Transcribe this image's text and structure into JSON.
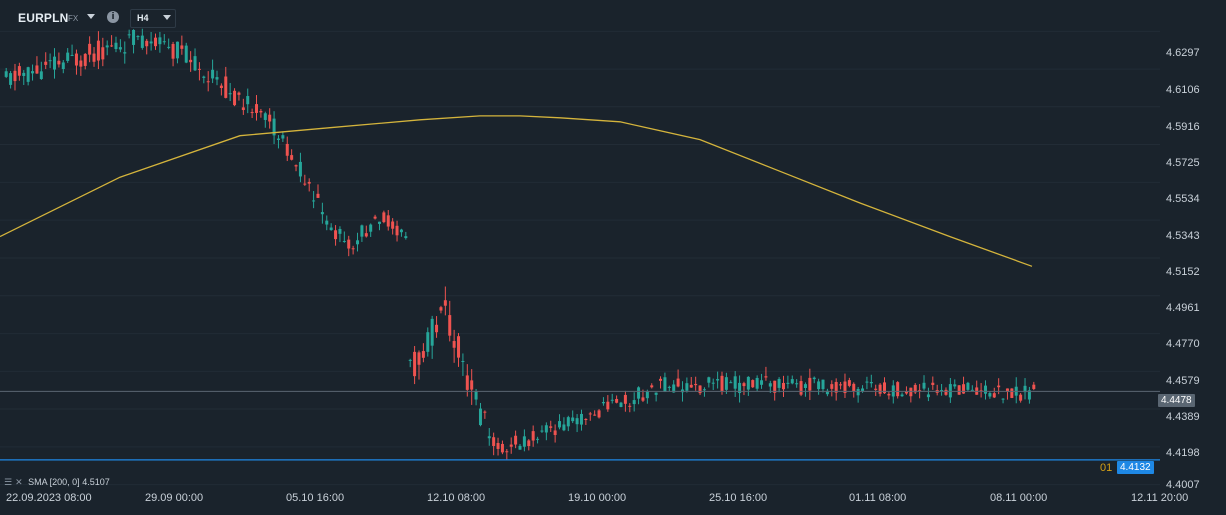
{
  "toolbar": {
    "symbol": "EURPLN",
    "symbol_type": "FX",
    "info_icon": "i",
    "timeframe": "H4"
  },
  "chart_data": {
    "type": "candlestick",
    "price_axis": [
      "4.6297",
      "4.6106",
      "4.5916",
      "4.5725",
      "4.5534",
      "4.5343",
      "4.5152",
      "4.4961",
      "4.4770",
      "4.4579",
      "4.4389",
      "4.4198",
      "4.4007"
    ],
    "time_axis": [
      "22.09.2023 08:00",
      "29.09 00:00",
      "05.10 16:00",
      "12.10 08:00",
      "19.10 00:00",
      "25.10 16:00",
      "01.11 08:00",
      "08.11 00:00",
      "12.11 20:00"
    ],
    "last_price": "4.4478",
    "line_price": "4.4132",
    "line_marker": "01",
    "sma": {
      "label": "SMA [200, 0]",
      "value": "4.5107",
      "color": "#d4b43c"
    },
    "colors": {
      "up": "#26a69a",
      "down": "#ef5350",
      "sma": "#d4b43c",
      "line": "#1e88e5"
    },
    "ylim": [
      4.398,
      4.643
    ],
    "sections": [
      {
        "n": 30,
        "from": 4.605,
        "to": 4.625,
        "vol": 0.007,
        "seed": 11
      },
      {
        "n": 10,
        "from": 4.625,
        "to": 4.62,
        "vol": 0.006,
        "seed": 12
      },
      {
        "n": 20,
        "from": 4.62,
        "to": 4.585,
        "vol": 0.007,
        "seed": 13
      },
      {
        "n": 18,
        "from": 4.585,
        "to": 4.522,
        "vol": 0.006,
        "seed": 14
      },
      {
        "n": 8,
        "from": 4.522,
        "to": 4.536,
        "vol": 0.005,
        "seed": 15
      },
      {
        "n": 6,
        "from": 4.536,
        "to": 4.525,
        "vol": 0.004,
        "seed": 16
      },
      {
        "n": 8,
        "from": 4.457,
        "to": 4.487,
        "vol": 0.01,
        "seed": 17
      },
      {
        "n": 12,
        "from": 4.487,
        "to": 4.418,
        "vol": 0.01,
        "seed": 18
      },
      {
        "n": 40,
        "from": 4.418,
        "to": 4.452,
        "vol": 0.005,
        "seed": 19
      },
      {
        "n": 35,
        "from": 4.452,
        "to": 4.45,
        "vol": 0.006,
        "seed": 20
      },
      {
        "n": 40,
        "from": 4.45,
        "to": 4.448,
        "vol": 0.005,
        "seed": 21
      },
      {
        "n": 8,
        "from": 4.448,
        "to": 4.4478,
        "vol": 0.006,
        "seed": 22
      }
    ],
    "sma_points": [
      [
        0,
        4.526
      ],
      [
        120,
        4.556
      ],
      [
        240,
        4.577
      ],
      [
        330,
        4.581
      ],
      [
        420,
        4.585
      ],
      [
        480,
        4.587
      ],
      [
        520,
        4.587
      ],
      [
        560,
        4.586
      ],
      [
        620,
        4.584
      ],
      [
        700,
        4.575
      ],
      [
        780,
        4.559
      ],
      [
        860,
        4.543
      ],
      [
        950,
        4.526
      ],
      [
        1032,
        4.511
      ]
    ]
  }
}
